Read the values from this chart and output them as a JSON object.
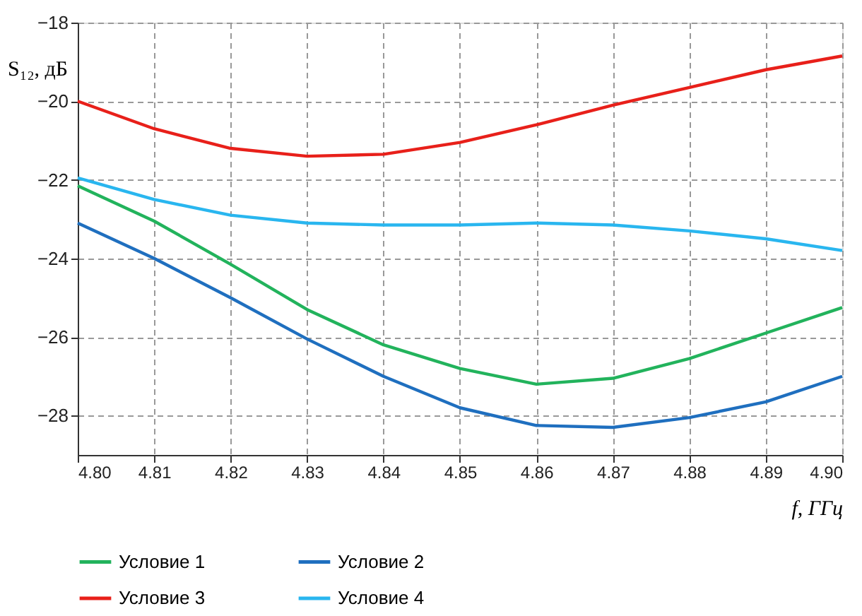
{
  "chart_data": {
    "type": "line",
    "xlabel": "f, ГГц",
    "ylabel": "S₁₂, дБ",
    "x": [
      4.8,
      4.81,
      4.82,
      4.83,
      4.84,
      4.85,
      4.86,
      4.87,
      4.88,
      4.89,
      4.9
    ],
    "series": [
      {
        "name": "Условие 1",
        "color": "#22b35c",
        "values": [
          -22.15,
          -23.05,
          -24.15,
          -25.3,
          -26.2,
          -26.8,
          -27.2,
          -27.05,
          -26.55,
          -25.9,
          -25.25
        ]
      },
      {
        "name": "Условие 2",
        "color": "#1f6fbf",
        "values": [
          -23.1,
          -24.0,
          -25.0,
          -26.05,
          -27.0,
          -27.8,
          -28.25,
          -28.3,
          -28.05,
          -27.65,
          -27.0
        ]
      },
      {
        "name": "Условие 3",
        "color": "#e8201a",
        "values": [
          -20.0,
          -20.7,
          -21.2,
          -21.4,
          -21.35,
          -21.05,
          -20.6,
          -20.1,
          -19.65,
          -19.2,
          -18.85
        ]
      },
      {
        "name": "Условие 4",
        "color": "#29b6ef",
        "values": [
          -21.95,
          -22.5,
          -22.9,
          -23.1,
          -23.15,
          -23.15,
          -23.1,
          -23.15,
          -23.3,
          -23.5,
          -23.8
        ]
      }
    ],
    "xlim": [
      4.8,
      4.9
    ],
    "xticks": [
      {
        "value": 4.8,
        "label": "4.80"
      },
      4.81,
      4.82,
      4.83,
      4.84,
      4.85,
      4.86,
      4.87,
      4.88,
      4.89,
      {
        "value": 4.9,
        "label": "4.90"
      }
    ],
    "ylim": [
      -29,
      -18
    ],
    "yticks": [
      -28,
      -26,
      -24,
      -22,
      -20,
      -18
    ],
    "grid": true,
    "legend": "bottom",
    "marker": "none",
    "line_style": "solid"
  }
}
